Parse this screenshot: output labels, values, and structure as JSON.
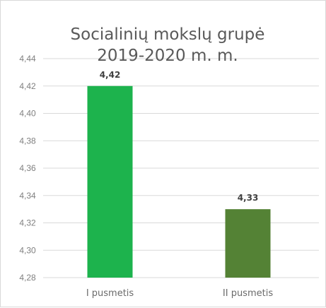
{
  "chart_data": {
    "type": "bar",
    "title_lines": [
      "Socialinių mokslų grupė",
      "2019-2020 m. m."
    ],
    "categories": [
      "I pusmetis",
      "II pusmetis"
    ],
    "values": [
      4.42,
      4.33
    ],
    "value_labels": [
      "4,42",
      "4,33"
    ],
    "bar_colors": [
      "#1db34d",
      "#548235"
    ],
    "ylim": [
      4.28,
      4.44
    ],
    "y_ticks": [
      4.44,
      4.42,
      4.4,
      4.38,
      4.36,
      4.34,
      4.32,
      4.3,
      4.28
    ],
    "y_tick_labels": [
      "4,44",
      "4,42",
      "4,40",
      "4,38",
      "4,36",
      "4,34",
      "4,32",
      "4,30",
      "4,28"
    ],
    "grid": true,
    "legend": "none"
  }
}
